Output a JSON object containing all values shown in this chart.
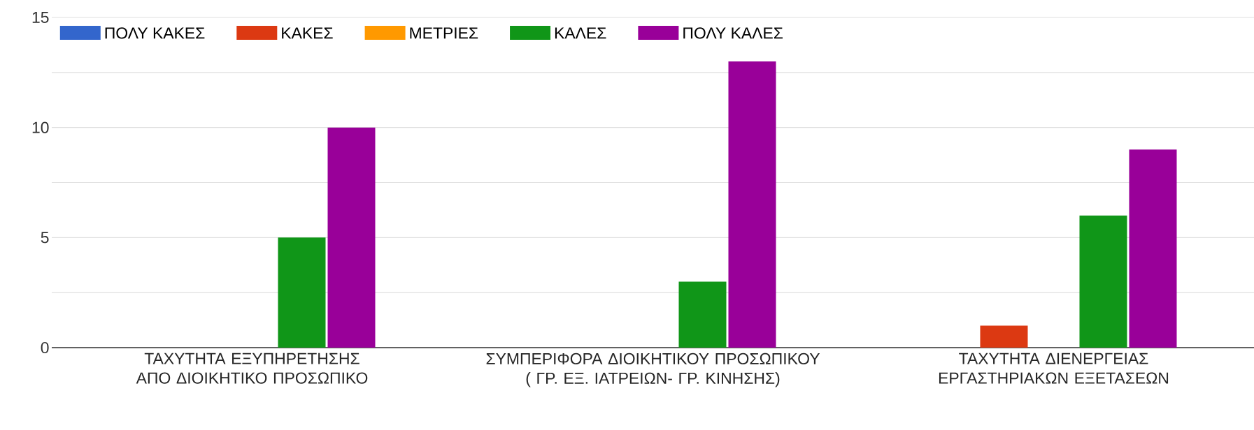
{
  "chart_data": {
    "type": "bar",
    "categories": [
      "ΤΑΧΥΤΗΤΑ ΕΞΥΠΗΡΕΤΗΣΗΣ ΑΠΟ ΔΙΟΙΚΗΤΙΚΟ ΠΡΟΣΩΠΙΚΟ",
      "ΣΥΜΠΕΡΙΦΟΡΑ ΔΙΟΙΚΗΤΙΚΟΥ ΠΡΟΣΩΠΙΚΟΥ ( ΓΡ. ΕΞ. ΙΑΤΡΕΙΩΝ- ΓΡ. ΚΙΝΗΣΗΣ)",
      "ΤΑΧΥΤΗΤΑ ΔΙΕΝΕΡΓΕΙΑΣ ΕΡΓΑΣΤΗΡΙΑΚΩΝ ΕΞΕΤΑΣΕΩΝ"
    ],
    "series": [
      {
        "name": "ΠΟΛΥ ΚΑΚΕΣ",
        "color": "#3366cc",
        "values": [
          0,
          0,
          0
        ]
      },
      {
        "name": "ΚΑΚΕΣ",
        "color": "#dc3912",
        "values": [
          0,
          0,
          1
        ]
      },
      {
        "name": "ΜΕΤΡΙΕΣ",
        "color": "#ff9900",
        "values": [
          0,
          0,
          0
        ]
      },
      {
        "name": "ΚΑΛΕΣ",
        "color": "#109618",
        "values": [
          5,
          3,
          6
        ]
      },
      {
        "name": "ΠΟΛΥ ΚΑΛΕΣ",
        "color": "#990099",
        "values": [
          10,
          13,
          9
        ]
      }
    ],
    "ylim": [
      0,
      15
    ],
    "yticks": [
      0,
      {
        "value": 2.5,
        "label": null
      },
      5,
      {
        "value": 7.5,
        "label": null
      },
      10,
      {
        "value": 12.5,
        "label": null
      },
      15
    ],
    "grid": "y",
    "legend": "top"
  }
}
